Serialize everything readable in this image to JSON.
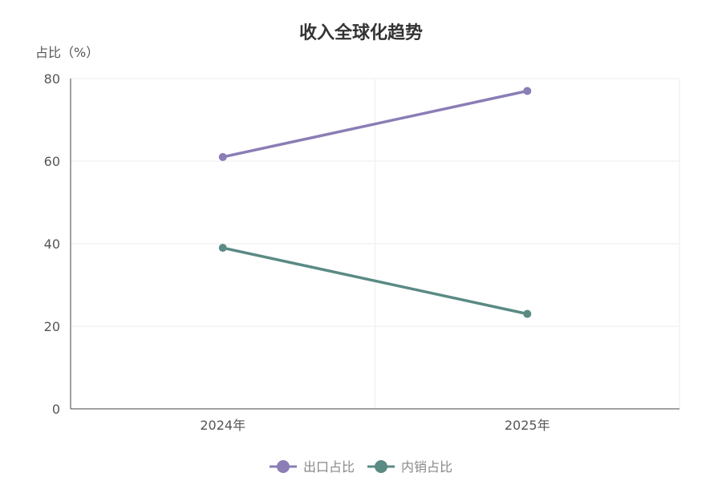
{
  "chart_data": {
    "type": "line",
    "title": "收入全球化趋势",
    "xlabel": "",
    "ylabel": "占比（%）",
    "categories": [
      "2024年",
      "2025年"
    ],
    "ylim": [
      0,
      80
    ],
    "yticks": [
      0,
      20,
      40,
      60,
      80
    ],
    "grid": true,
    "legend_position": "bottom-center",
    "series": [
      {
        "name": "出口占比",
        "values": [
          61,
          77
        ],
        "color": "#8b7db5"
      },
      {
        "name": "内销占比",
        "values": [
          39,
          23
        ],
        "color": "#5a8a84"
      }
    ]
  }
}
